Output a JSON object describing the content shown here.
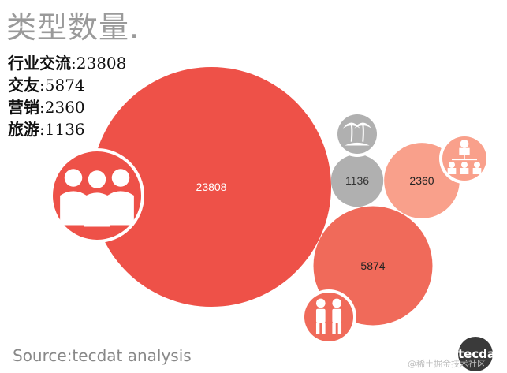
{
  "title": "类型数量.",
  "legend": [
    {
      "label": "行业交流",
      "value": ":23808"
    },
    {
      "label": "交友",
      "value": ":5874"
    },
    {
      "label": "营销",
      "value": ":2360"
    },
    {
      "label": "旅游",
      "value": ":1136"
    }
  ],
  "chart_data": {
    "type": "bubble",
    "title": "类型数量.",
    "categories": [
      "行业交流",
      "交友",
      "营销",
      "旅游"
    ],
    "values": [
      23808,
      5874,
      2360,
      1136
    ],
    "data_labels": [
      "23808",
      "5874",
      "2360",
      "1136"
    ],
    "colors": [
      "#ee5148",
      "#f06a5a",
      "#f9a08b",
      "#b0b0b0"
    ],
    "icons": [
      "people-group-icon",
      "couple-icon",
      "org-chart-icon",
      "palm-beach-icon"
    ]
  },
  "source": "Source:tecdat analysis",
  "logo": "tecdat",
  "watermark": "@稀土掘金技术社区"
}
